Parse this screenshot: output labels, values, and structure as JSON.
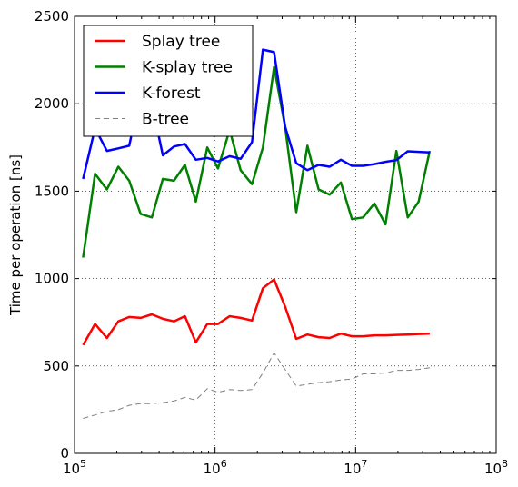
{
  "chart_data": {
    "type": "line",
    "title": "",
    "xlabel": "",
    "ylabel": "Time per operation [ns]",
    "xscale": "log",
    "xlim": [
      100000,
      100000000
    ],
    "ylim": [
      0,
      2500
    ],
    "x_ticks": [
      {
        "value": 100000,
        "base": "10",
        "exp": "5"
      },
      {
        "value": 1000000,
        "base": "10",
        "exp": "6"
      },
      {
        "value": 10000000,
        "base": "10",
        "exp": "7"
      },
      {
        "value": 100000000,
        "base": "10",
        "exp": "8"
      }
    ],
    "y_ticks": [
      0,
      500,
      1000,
      1500,
      2000,
      2500
    ],
    "grid": true,
    "legend_position": "upper-left",
    "x": [
      115000,
      140000,
      170000,
      205000,
      245000,
      295000,
      355000,
      425000,
      510000,
      610000,
      730000,
      880000,
      1050000,
      1270000,
      1520000,
      1830000,
      2190000,
      2630000,
      3150000,
      3780000,
      4540000,
      5450000,
      6540000,
      7850000,
      9420000,
      11300000,
      13600000,
      16300000,
      19500000,
      23500000,
      28100000,
      33700000
    ],
    "series": [
      {
        "name": "Splay tree",
        "color": "#ff0000",
        "style": "solid",
        "values": [
          620,
          740,
          660,
          755,
          780,
          775,
          795,
          770,
          755,
          785,
          635,
          740,
          740,
          785,
          775,
          760,
          945,
          995,
          840,
          655,
          680,
          665,
          660,
          685,
          670,
          670,
          675,
          675,
          678,
          680,
          683,
          685
        ]
      },
      {
        "name": "K-splay tree",
        "color": "#008000",
        "style": "solid",
        "values": [
          1120,
          1600,
          1510,
          1640,
          1560,
          1370,
          1350,
          1570,
          1560,
          1650,
          1440,
          1750,
          1630,
          1850,
          1620,
          1540,
          1750,
          2210,
          1870,
          1380,
          1760,
          1510,
          1480,
          1550,
          1340,
          1350,
          1430,
          1310,
          1730,
          1350,
          1440,
          1730
        ]
      },
      {
        "name": "K-forest",
        "color": "#0000ff",
        "style": "solid",
        "values": [
          1570,
          1860,
          1730,
          1745,
          1760,
          2070,
          2000,
          1705,
          1755,
          1770,
          1680,
          1690,
          1670,
          1700,
          1685,
          1780,
          2310,
          2295,
          1870,
          1660,
          1620,
          1650,
          1640,
          1680,
          1645,
          1645,
          1655,
          1668,
          1678,
          1728,
          1725,
          1722
        ]
      },
      {
        "name": "B-tree",
        "color": "#808080",
        "style": "dashed",
        "values": [
          200,
          220,
          240,
          250,
          275,
          285,
          285,
          290,
          300,
          320,
          305,
          370,
          350,
          365,
          360,
          365,
          460,
          575,
          480,
          385,
          395,
          405,
          410,
          420,
          425,
          455,
          455,
          460,
          475,
          475,
          480,
          490
        ]
      }
    ]
  }
}
